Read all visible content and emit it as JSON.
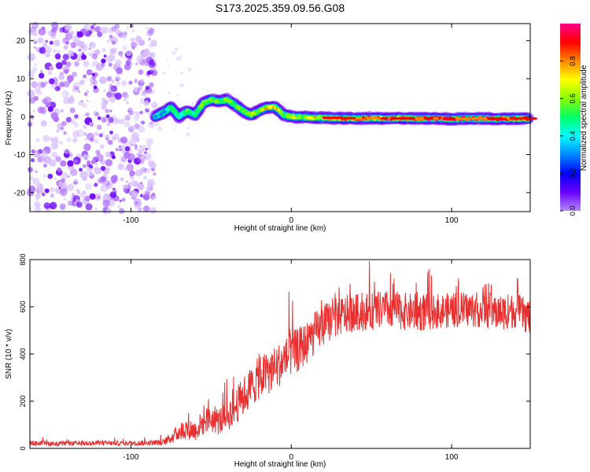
{
  "figure_title": "S173.2025.359.09.56.G08",
  "chart_data": [
    {
      "type": "heatmap",
      "title": "S173.2025.359.09.56.G08",
      "xlabel": "Height of straight line (km)",
      "ylabel": "Frequency (Hz)",
      "xlim": [
        -163,
        149
      ],
      "ylim": [
        -25,
        24.5
      ],
      "x_ticks": [
        -100,
        0,
        100
      ],
      "y_ticks": [
        -20,
        -10,
        0,
        10,
        20
      ],
      "colorbar": {
        "label": "Normalized spectral amplitude",
        "range": [
          0,
          1
        ],
        "ticks": [
          "0.0",
          "0.2",
          "0.4",
          "0.6",
          "0.8"
        ],
        "colormap": [
          "#b388ff",
          "#6a00ff",
          "#0000ff",
          "#0088ff",
          "#00ffff",
          "#00ff66",
          "#88ff00",
          "#ffff00",
          "#ff8800",
          "#ff0000",
          "#ff0088"
        ]
      },
      "noise_region_x": [
        -163,
        -85
      ],
      "signal_track": {
        "x": [
          -85,
          -80,
          -75,
          -70,
          -65,
          -60,
          -55,
          -50,
          -45,
          -40,
          -35,
          -30,
          -25,
          -20,
          -15,
          -10,
          -5,
          0,
          10,
          20,
          30,
          40,
          50,
          60,
          70,
          80,
          90,
          100,
          110,
          120,
          130,
          140,
          148
        ],
        "freq": [
          0,
          1,
          2.5,
          0,
          1.5,
          0.5,
          3.5,
          4.5,
          4,
          4.5,
          3,
          1.5,
          0.5,
          1.5,
          2.5,
          2.5,
          0.5,
          0,
          -0.2,
          -0.3,
          -0.4,
          -0.5,
          -0.4,
          -0.5,
          -0.4,
          -0.5,
          -0.5,
          -0.6,
          -0.5,
          -0.5,
          -0.6,
          -0.5,
          -0.5
        ],
        "amp": [
          0.3,
          0.35,
          0.5,
          0.4,
          0.5,
          0.45,
          0.55,
          0.6,
          0.55,
          0.6,
          0.5,
          0.55,
          0.6,
          0.6,
          0.7,
          0.75,
          0.55,
          0.6,
          0.65,
          0.7,
          0.75,
          0.8,
          0.8,
          0.85,
          0.85,
          0.9,
          0.95,
          0.9,
          0.95,
          0.9,
          0.85,
          0.85,
          0.8
        ]
      }
    },
    {
      "type": "line",
      "xlabel": "Height of straight line (km)",
      "ylabel": "SNR (10 * v/v)",
      "xlim": [
        -163,
        149
      ],
      "ylim": [
        0,
        800
      ],
      "x_ticks": [
        -100,
        0,
        100
      ],
      "y_ticks": [
        0,
        200,
        400,
        600,
        800
      ],
      "series": [
        {
          "name": "SNR",
          "color": "#e83030",
          "x": [
            -163,
            -140,
            -120,
            -100,
            -80,
            -75,
            -70,
            -65,
            -60,
            -55,
            -50,
            -45,
            -40,
            -35,
            -30,
            -25,
            -20,
            -15,
            -10,
            -5,
            0,
            5,
            10,
            15,
            20,
            25,
            30,
            40,
            50,
            60,
            70,
            80,
            90,
            100,
            110,
            120,
            130,
            140,
            149
          ],
          "values": [
            22,
            20,
            22,
            22,
            25,
            45,
            70,
            85,
            75,
            110,
            125,
            115,
            135,
            175,
            220,
            260,
            300,
            320,
            340,
            370,
            400,
            420,
            450,
            490,
            520,
            545,
            560,
            575,
            580,
            590,
            580,
            575,
            580,
            585,
            590,
            585,
            575,
            585,
            555
          ],
          "noise_amplitude": [
            10,
            10,
            10,
            10,
            12,
            25,
            40,
            45,
            45,
            55,
            60,
            60,
            65,
            75,
            85,
            90,
            90,
            95,
            95,
            95,
            95,
            95,
            90,
            90,
            90,
            85,
            85,
            80,
            80,
            80,
            80,
            80,
            75,
            75,
            75,
            75,
            75,
            75,
            75
          ]
        }
      ]
    }
  ]
}
